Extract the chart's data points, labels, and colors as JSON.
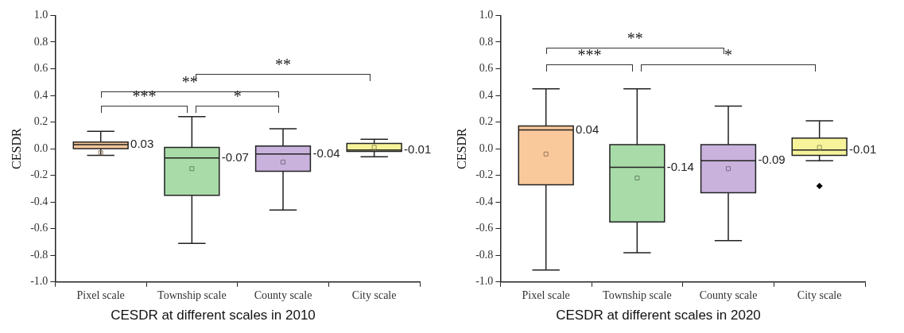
{
  "chart_data": [
    {
      "type": "box",
      "title": "CESDR at different scales in 2010",
      "ylabel": "CESDR",
      "categories": [
        "Pixel scale",
        "Township scale",
        "County scale",
        "City scale"
      ],
      "colors": [
        "#f9c89b",
        "#a8dba8",
        "#c9b3dd",
        "#f7f39a"
      ],
      "boxes": [
        {
          "low": -0.05,
          "q1": 0.0,
          "median": 0.03,
          "q3": 0.05,
          "high": 0.13,
          "mean": -0.03
        },
        {
          "low": -0.71,
          "q1": -0.35,
          "median": -0.07,
          "q3": 0.01,
          "high": 0.24,
          "mean": -0.15
        },
        {
          "low": -0.46,
          "q1": -0.17,
          "median": -0.04,
          "q3": 0.02,
          "high": 0.15,
          "mean": -0.1
        },
        {
          "low": -0.06,
          "q1": -0.02,
          "median": -0.01,
          "q3": 0.04,
          "high": 0.07,
          "mean": 0.01
        }
      ],
      "ylim": [
        -1,
        1
      ],
      "yticks": [
        {
          "value": -1,
          "label": "-1.0"
        },
        {
          "value": -0.8,
          "label": "-0.8"
        },
        {
          "value": -0.6,
          "label": "-0.6"
        },
        {
          "value": -0.4,
          "label": "-0.4"
        },
        {
          "value": -0.2,
          "label": "-0.2"
        },
        {
          "value": 0,
          "label": "0.0"
        },
        {
          "value": 0.2,
          "label": "0.2"
        },
        {
          "value": 0.4,
          "label": "0.4"
        },
        {
          "value": 0.6,
          "label": "0.6"
        },
        {
          "value": 0.8,
          "label": "0.8"
        },
        {
          "value": 1,
          "label": "1.0"
        }
      ],
      "grid": false,
      "legend": false,
      "annotations": [
        {
          "text": "0.03",
          "x": "Pixel scale",
          "y": 0.03
        },
        {
          "text": "-0.07",
          "x": "Township scale",
          "y": -0.07
        },
        {
          "text": "-0.04",
          "x": "County scale",
          "y": -0.04
        },
        {
          "text": "-0.01",
          "x": "City scale",
          "y": -0.01
        },
        "***",
        "*",
        "**",
        "**"
      ]
    },
    {
      "type": "box",
      "title": "CESDR at different scales in 2020",
      "ylabel": "CESDR",
      "categories": [
        "Pixel scale",
        "Township scale",
        "County scale",
        "City scale"
      ],
      "colors": [
        "#f9c89b",
        "#a8dba8",
        "#c9b3dd",
        "#f7f39a"
      ],
      "boxes": [
        {
          "low": -0.91,
          "q1": -0.27,
          "median": 0.14,
          "q3": 0.17,
          "high": 0.45,
          "mean": -0.04
        },
        {
          "low": -0.78,
          "q1": -0.55,
          "median": -0.14,
          "q3": 0.03,
          "high": 0.45,
          "mean": -0.22
        },
        {
          "low": -0.69,
          "q1": -0.33,
          "median": -0.09,
          "q3": 0.03,
          "high": 0.32,
          "mean": -0.15
        },
        {
          "low": -0.09,
          "q1": -0.05,
          "median": -0.01,
          "q3": 0.08,
          "high": 0.21,
          "mean": 0.01,
          "outliers": [
            -0.28
          ]
        }
      ],
      "ylim": [
        -1,
        1
      ],
      "yticks": [
        {
          "value": -1,
          "label": "-1.0"
        },
        {
          "value": -0.8,
          "label": "-0.8"
        },
        {
          "value": -0.6,
          "label": "-0.6"
        },
        {
          "value": -0.4,
          "label": "-0.4"
        },
        {
          "value": -0.2,
          "label": "-0.2"
        },
        {
          "value": 0,
          "label": "0.0"
        },
        {
          "value": 0.2,
          "label": "0.2"
        },
        {
          "value": 0.4,
          "label": "0.4"
        },
        {
          "value": 0.6,
          "label": "0.6"
        },
        {
          "value": 0.8,
          "label": "0.8"
        },
        {
          "value": 1,
          "label": "1.0"
        }
      ],
      "grid": false,
      "legend": false,
      "annotations": [
        {
          "text": "0.04",
          "x": "Pixel scale",
          "y": 0.14
        },
        {
          "text": "-0.14",
          "x": "Township scale",
          "y": -0.14
        },
        {
          "text": "-0.09",
          "x": "County scale",
          "y": -0.09
        },
        {
          "text": "-0.01",
          "x": "City scale",
          "y": -0.01
        },
        "**",
        "***",
        "*"
      ]
    }
  ]
}
